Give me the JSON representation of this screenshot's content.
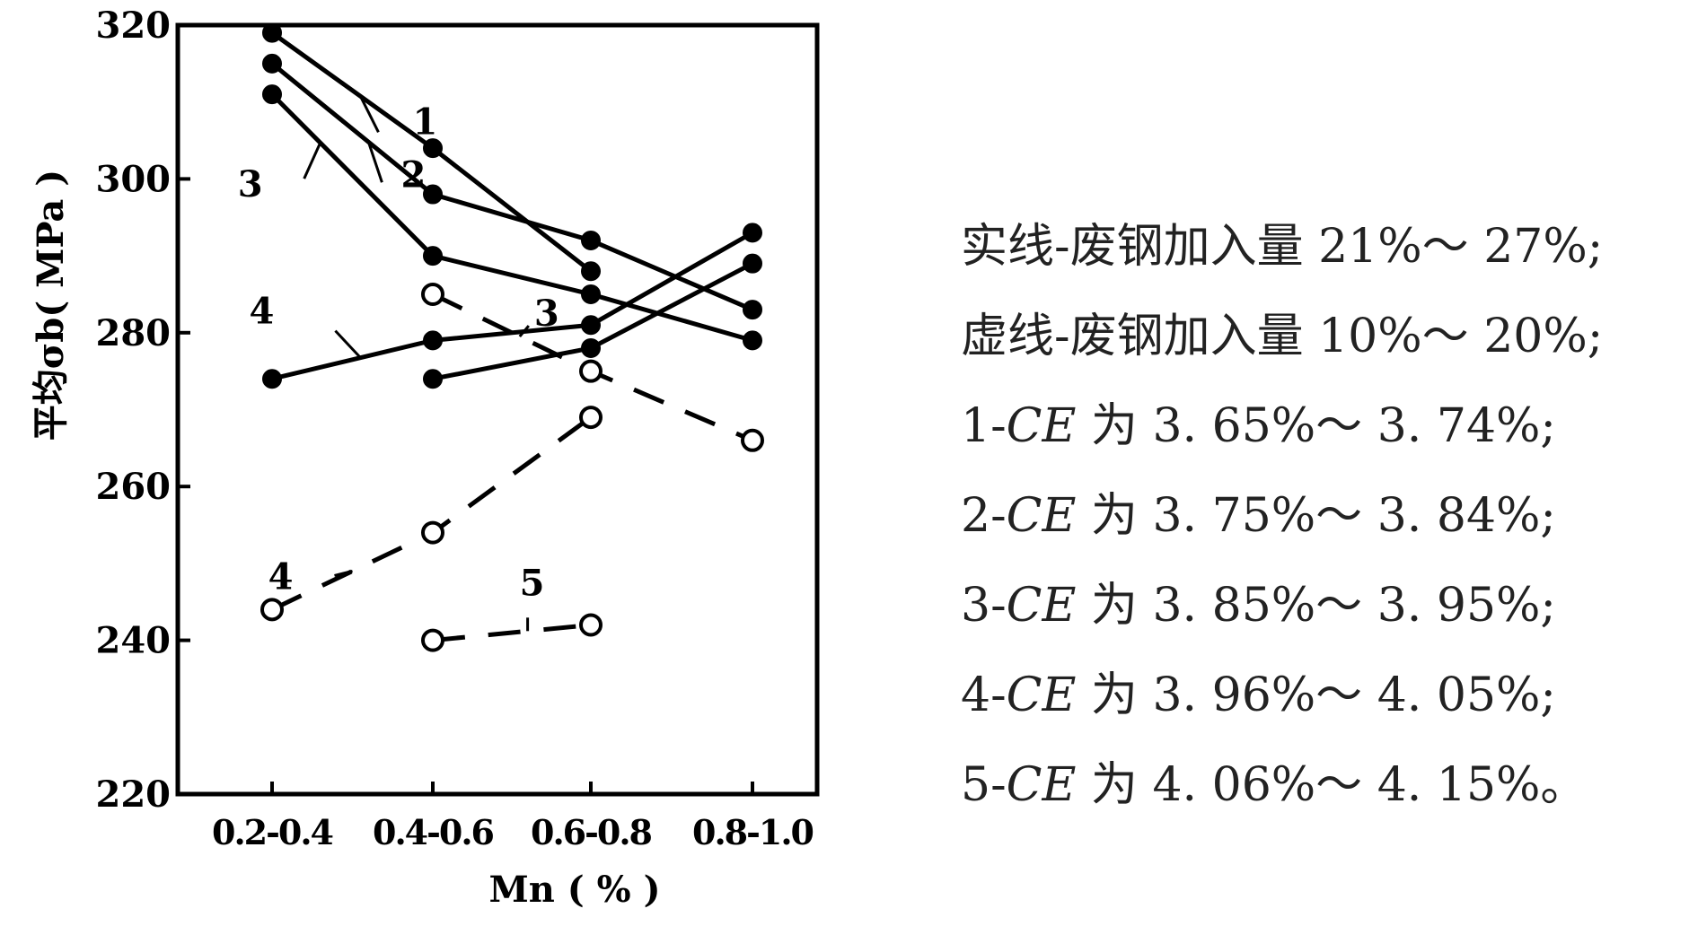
{
  "chart_data": {
    "type": "line",
    "xlabel": "Mn ( % )",
    "ylabel": "平均σb( MPa )",
    "categories": [
      "0.2-0.4",
      "0.4-0.6",
      "0.6-0.8",
      "0.8-1.0"
    ],
    "ylim": [
      220,
      320
    ],
    "yticks": [
      "220",
      "240",
      "260",
      "280",
      "300",
      "320"
    ],
    "series": [
      {
        "name": "1",
        "style": "solid",
        "marker": "filled",
        "values": [
          319,
          304,
          288,
          null
        ]
      },
      {
        "name": "2",
        "style": "solid",
        "marker": "filled",
        "values": [
          315,
          298,
          292,
          283
        ]
      },
      {
        "name": "3",
        "style": "solid",
        "marker": "filled",
        "values": [
          311,
          290,
          285,
          279
        ]
      },
      {
        "name": "4",
        "style": "solid",
        "marker": "filled",
        "values": [
          274,
          279,
          281,
          293
        ]
      },
      {
        "name": "5",
        "style": "solid",
        "marker": "filled",
        "values": [
          null,
          274,
          278,
          289
        ]
      },
      {
        "name": "3",
        "style": "dashed",
        "marker": "open",
        "values": [
          null,
          285,
          275,
          266
        ]
      },
      {
        "name": "4",
        "style": "dashed",
        "marker": "open",
        "values": [
          244,
          254,
          269,
          null
        ]
      },
      {
        "name": "5",
        "style": "dashed",
        "marker": "open",
        "values": [
          null,
          240,
          242,
          null
        ]
      }
    ],
    "grid": false,
    "legend": "right"
  },
  "legend_lines": [
    {
      "prefix": "实线-废钢加入量 21%～ 27%;"
    },
    {
      "prefix": "虚线-废钢加入量 10%～ 20%;"
    },
    {
      "prefix": "1-",
      "ce": "CE",
      "suffix": " 为 3. 65%～ 3. 74%;"
    },
    {
      "prefix": "2-",
      "ce": "CE",
      "suffix": " 为 3. 75%～ 3. 84%;"
    },
    {
      "prefix": "3-",
      "ce": "CE",
      "suffix": " 为 3. 85%～ 3. 95%;"
    },
    {
      "prefix": "4-",
      "ce": "CE",
      "suffix": " 为 3. 96%～ 4. 05%;"
    },
    {
      "prefix": "5-",
      "ce": "CE",
      "suffix": " 为 4. 06%～ 4. 15%。"
    }
  ]
}
